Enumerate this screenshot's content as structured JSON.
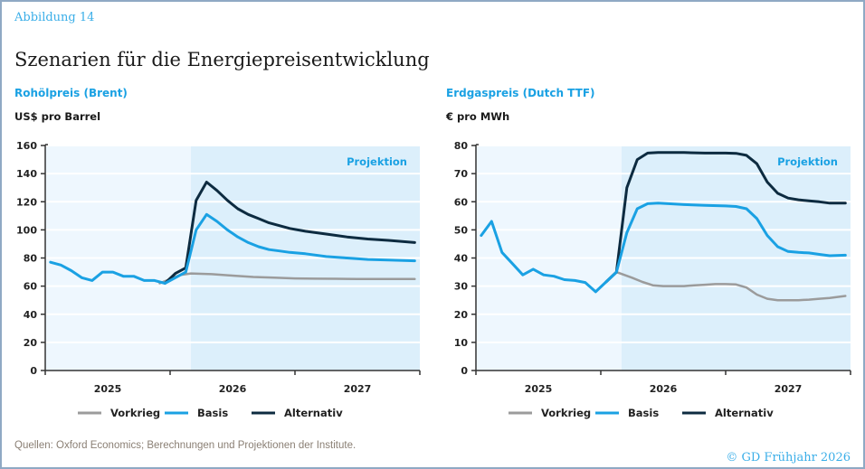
{
  "figure_label": "Abbildung 14",
  "title": "Szenarien für die Energiepreisentwicklung",
  "source": "Quellen: Oxford Economics; Berechnungen und Projektionen der Institute.",
  "copyright": "© GD Frühjahr 2026",
  "colors": {
    "vorkrieg": "#9b9b9b",
    "basis": "#1aa1e3",
    "alternativ": "#0d2b40",
    "history_bg": "#eef7fe",
    "projection_bg": "#dceffb",
    "accent": "#1aa1e3"
  },
  "chart_data": [
    {
      "type": "line",
      "title": "Rohölpreis (Brent)",
      "ylabel": "US$ pro Barrel",
      "xlabel": "",
      "ylim": [
        0,
        160
      ],
      "yticks": [
        0,
        20,
        40,
        60,
        80,
        100,
        120,
        140,
        160
      ],
      "categories": [
        "2025",
        "2026",
        "2027"
      ],
      "x_unit": "months since Jan 2025",
      "xlim": [
        0,
        36
      ],
      "projection_start": 14,
      "projection_label": "Projektion",
      "grid": true,
      "legend": "bottom",
      "series": [
        {
          "name": "Vorkrieg",
          "x": [
            11,
            12,
            13,
            14,
            16,
            18,
            20,
            22,
            24,
            26,
            28,
            30,
            32,
            34,
            35.5
          ],
          "values": [
            62,
            65,
            68,
            69,
            68.5,
            67.5,
            66.5,
            66,
            65.5,
            65.3,
            65.2,
            65,
            65,
            65,
            65
          ]
        },
        {
          "name": "Basis",
          "x": [
            0.5,
            1.5,
            2.5,
            3.5,
            4.5,
            5.5,
            6.5,
            7.5,
            8.5,
            9.5,
            10.5,
            11.5,
            12.5,
            13.5,
            14.5,
            15.5,
            16.5,
            17.5,
            18.5,
            19.5,
            20.5,
            21.5,
            22.5,
            23.5,
            25,
            27,
            29,
            31,
            33,
            35.5
          ],
          "values": [
            77,
            75,
            71,
            66,
            64,
            70,
            70,
            67,
            67,
            64,
            64,
            62,
            66,
            70,
            100,
            111,
            106,
            100,
            95,
            91,
            88,
            86,
            85,
            84,
            83,
            81,
            80,
            79,
            78.5,
            78
          ]
        },
        {
          "name": "Alternativ",
          "x": [
            11.5,
            12.5,
            13.5,
            14.5,
            15.5,
            16.5,
            17.5,
            18.5,
            19.5,
            20.5,
            21.5,
            22.5,
            23.5,
            25,
            27,
            29,
            31,
            33,
            35.5
          ],
          "values": [
            62,
            69,
            73,
            121,
            134,
            128,
            121,
            115,
            111,
            108,
            105,
            103,
            101,
            99,
            97,
            95,
            93.5,
            92.5,
            91
          ]
        }
      ]
    },
    {
      "type": "line",
      "title": "Erdgaspreis (Dutch TTF)",
      "ylabel": "€ pro MWh",
      "xlabel": "",
      "ylim": [
        0,
        80
      ],
      "yticks": [
        0,
        10,
        20,
        30,
        40,
        50,
        60,
        70,
        80
      ],
      "categories": [
        "2025",
        "2026",
        "2027"
      ],
      "x_unit": "months since Jan 2025",
      "xlim": [
        0,
        36
      ],
      "projection_start": 14,
      "projection_label": "Projektion",
      "grid": true,
      "legend": "bottom",
      "series": [
        {
          "name": "Vorkrieg",
          "x": [
            13.5,
            15,
            16,
            17,
            18,
            19,
            20,
            21,
            22,
            23,
            24,
            25,
            26,
            27,
            28,
            29,
            30,
            31,
            32,
            33,
            34,
            35.5
          ],
          "values": [
            35,
            33,
            31.5,
            30.3,
            30,
            30,
            30,
            30.3,
            30.5,
            30.7,
            30.7,
            30.6,
            29.5,
            27,
            25.5,
            25,
            25,
            25,
            25.2,
            25.5,
            25.8,
            26.5
          ]
        },
        {
          "name": "Basis",
          "x": [
            0.5,
            1.5,
            2.5,
            3.5,
            4.5,
            5.5,
            6.5,
            7.5,
            8.5,
            9.5,
            10.5,
            11.5,
            12.5,
            13.5,
            14.5,
            15.5,
            16.5,
            17.5,
            18.5,
            20,
            22,
            24,
            25,
            26,
            27,
            28,
            29,
            30,
            31,
            32,
            33,
            34,
            35.5
          ],
          "values": [
            48,
            53,
            42,
            38,
            34,
            36,
            34,
            33.5,
            32.3,
            32,
            31.3,
            28,
            31.5,
            35,
            49,
            57.5,
            59.3,
            59.5,
            59.3,
            59,
            58.7,
            58.5,
            58.3,
            57.5,
            54,
            48,
            44,
            42.3,
            42,
            41.8,
            41.3,
            40.8,
            41
          ]
        },
        {
          "name": "Alternativ",
          "x": [
            12.5,
            13.5,
            14.5,
            15.5,
            16.5,
            17.5,
            18.5,
            20,
            22,
            24,
            25,
            26,
            27,
            28,
            29,
            30,
            31,
            32,
            33,
            34,
            35.5
          ],
          "values": [
            31.5,
            35,
            65,
            75,
            77.3,
            77.5,
            77.5,
            77.5,
            77.3,
            77.3,
            77.2,
            76.5,
            73.5,
            67,
            63,
            61.3,
            60.7,
            60.3,
            60,
            59.5,
            59.5
          ]
        }
      ]
    }
  ]
}
